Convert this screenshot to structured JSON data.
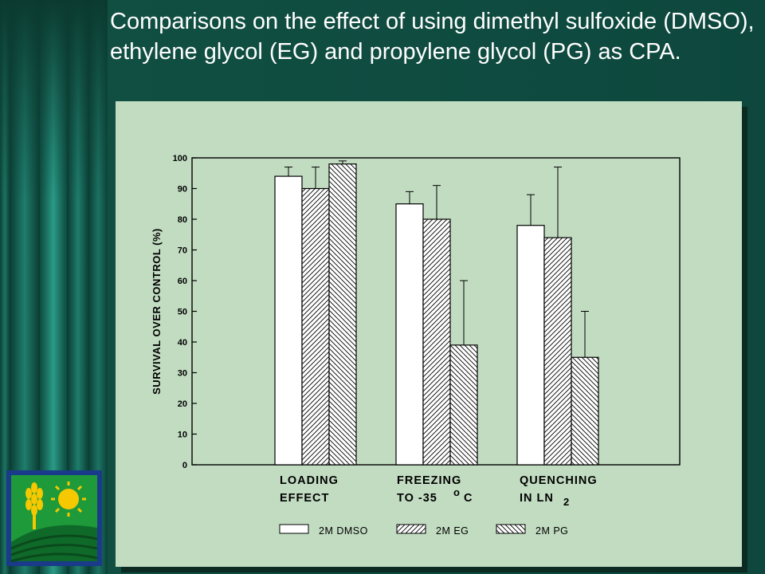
{
  "slide": {
    "title": "Comparisons on the effect of using dimethyl sulfoxide (DMSO), ethylene glycol (EG) and propylene glycol (PG) as CPA."
  },
  "colors": {
    "background": "#0f4a3e",
    "panel": "#c2dcc2",
    "bar_fill": "#ffffff",
    "ink": "#000000"
  },
  "logo": {
    "icon": "wheat-sun-field-logo"
  },
  "chart_data": {
    "type": "bar",
    "ylabel": "SURVIVAL OVER CONTROL (%)",
    "ylim": [
      0,
      100
    ],
    "yticks": [
      0,
      10,
      20,
      30,
      40,
      50,
      60,
      70,
      80,
      90,
      100
    ],
    "categories": [
      {
        "lines": [
          "LOADING",
          "EFFECT"
        ]
      },
      {
        "lines": [
          "FREEZING",
          "TO -35"
        ],
        "sup": "o",
        "suffix": "C"
      },
      {
        "lines": [
          "QUENCHING",
          "IN LN"
        ],
        "sub": "2"
      }
    ],
    "series": [
      {
        "name": "2M DMSO",
        "pattern": "solid",
        "values": [
          94,
          85,
          78
        ],
        "errors": [
          3,
          4,
          10
        ]
      },
      {
        "name": "2M EG",
        "pattern": "hatch-forward",
        "values": [
          90,
          80,
          74
        ],
        "errors": [
          7,
          11,
          23
        ]
      },
      {
        "name": "2M PG",
        "pattern": "hatch-back",
        "values": [
          98,
          39,
          35
        ],
        "errors": [
          1,
          21,
          15
        ]
      }
    ],
    "legend_position": "bottom",
    "grid": false
  }
}
